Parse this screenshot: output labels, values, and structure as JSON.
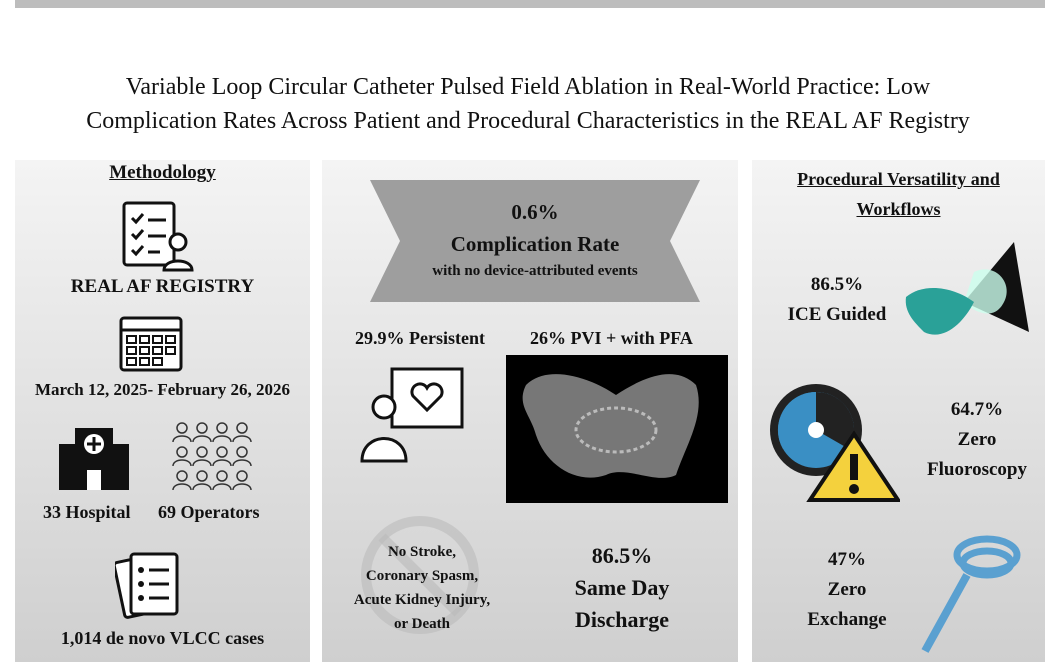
{
  "header": {
    "title_lines": [
      "Variable Loop Circular Catheter Pulsed Field Ablation in Real-World Practice: Low",
      "Complication Rates Across Patient and Procedural Characteristics in the REAL AF Registry"
    ]
  },
  "methodology": {
    "heading": "Methodology",
    "registry": "REAL AF REGISTRY",
    "dates": "March 12, 2025- February 26, 2026",
    "hospitals": "33 Hospital",
    "operators": "69 Operators",
    "cases": "1,014 de novo VLCC cases"
  },
  "outcomes": {
    "rate": "0.6%",
    "rate_label": "Complication Rate",
    "rate_note": "with no device-attributed events",
    "persistent": "29.9% Persistent",
    "pvi": "26% PVI + with PFA",
    "no_events": [
      "No Stroke,",
      "Coronary Spasm,",
      "Acute Kidney Injury,",
      "or Death"
    ],
    "discharge_value": "86.5%",
    "discharge_label": [
      "Same Day",
      "Discharge"
    ]
  },
  "versatility": {
    "heading": [
      "Procedural Versatility and",
      "Workflows"
    ],
    "ice_value": "86.5%",
    "ice_label": "ICE Guided",
    "fluoro_value": "64.7%",
    "fluoro_label": [
      "Zero",
      "Fluoroscopy"
    ],
    "exchange_value": "47%",
    "exchange_label": [
      "Zero",
      "Exchange"
    ]
  }
}
